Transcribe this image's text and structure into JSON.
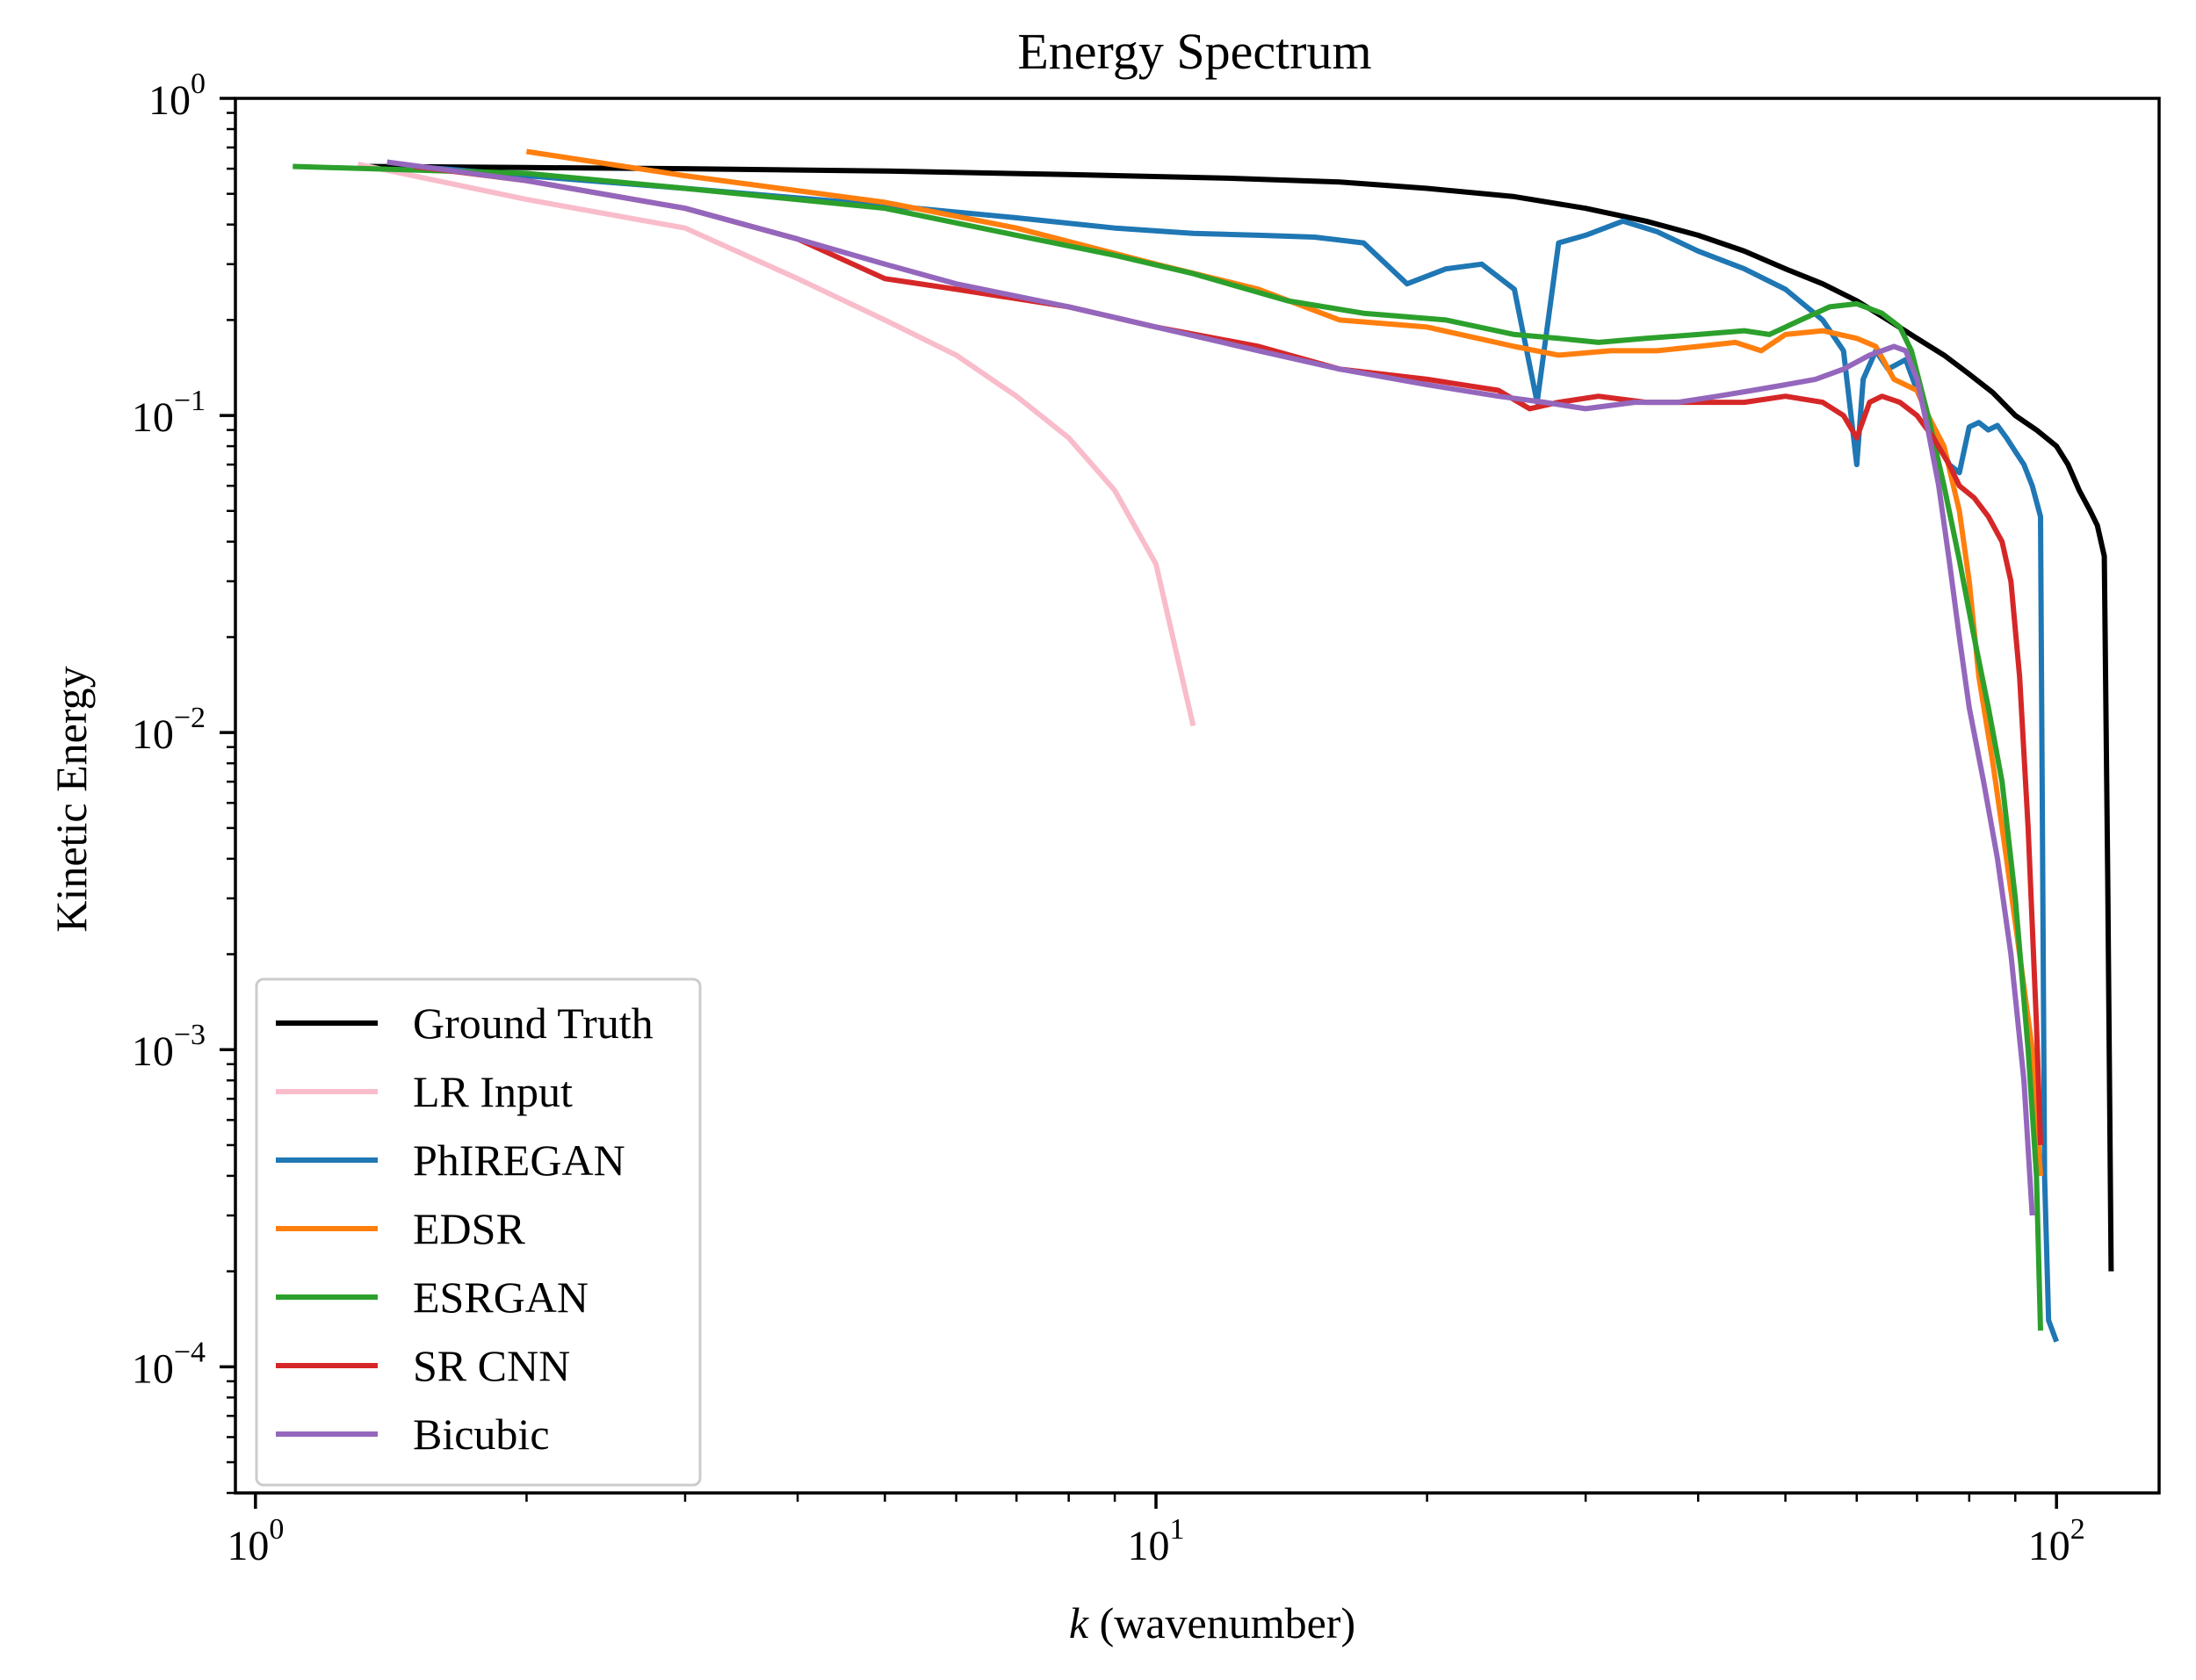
{
  "chart_data": {
    "type": "line",
    "title": "Energy Spectrum",
    "xlabel_italic": "k",
    "xlabel_rest": " (wavenumber)",
    "ylabel": "Kinetic Energy",
    "xscale": "log",
    "yscale": "log",
    "xlim": [
      0.95,
      130
    ],
    "ylim": [
      4e-05,
      1.0
    ],
    "x_ticks": [
      {
        "value": 1,
        "base": "10",
        "exp": "0"
      },
      {
        "value": 10,
        "base": "10",
        "exp": "1"
      },
      {
        "value": 100,
        "base": "10",
        "exp": "2"
      }
    ],
    "y_ticks": [
      {
        "value": 1,
        "base": "10",
        "exp": "0"
      },
      {
        "value": 0.1,
        "base": "10",
        "exp": "−1"
      },
      {
        "value": 0.01,
        "base": "10",
        "exp": "−2"
      },
      {
        "value": 0.001,
        "base": "10",
        "exp": "−3"
      },
      {
        "value": 0.0001,
        "base": "10",
        "exp": "−4"
      }
    ],
    "grid": false,
    "legend_position": "lower-left",
    "series": [
      {
        "name": "Ground Truth",
        "color": "#000000",
        "points": [
          [
            1.3,
            0.61
          ],
          [
            2,
            0.605
          ],
          [
            3,
            0.6
          ],
          [
            5,
            0.59
          ],
          [
            8,
            0.575
          ],
          [
            12,
            0.56
          ],
          [
            16,
            0.545
          ],
          [
            20,
            0.52
          ],
          [
            25,
            0.49
          ],
          [
            30,
            0.45
          ],
          [
            35,
            0.41
          ],
          [
            40,
            0.37
          ],
          [
            45,
            0.33
          ],
          [
            50,
            0.29
          ],
          [
            55,
            0.26
          ],
          [
            60,
            0.23
          ],
          [
            65,
            0.2
          ],
          [
            70,
            0.175
          ],
          [
            75,
            0.155
          ],
          [
            80,
            0.135
          ],
          [
            85,
            0.118
          ],
          [
            90,
            0.1
          ],
          [
            95,
            0.09
          ],
          [
            100,
            0.08
          ],
          [
            103,
            0.07
          ],
          [
            106,
            0.058
          ],
          [
            109,
            0.05
          ],
          [
            111,
            0.045
          ],
          [
            113,
            0.036
          ],
          [
            114,
            0.0035
          ],
          [
            115,
            0.0002
          ]
        ]
      },
      {
        "name": "LR Input",
        "color": "#f9bccb",
        "points": [
          [
            1.3,
            0.62
          ],
          [
            2,
            0.48
          ],
          [
            3,
            0.39
          ],
          [
            4,
            0.27
          ],
          [
            5,
            0.2
          ],
          [
            6,
            0.155
          ],
          [
            7,
            0.115
          ],
          [
            8,
            0.085
          ],
          [
            9,
            0.058
          ],
          [
            10,
            0.034
          ],
          [
            11,
            0.0105
          ]
        ]
      },
      {
        "name": "PhIREGAN",
        "color": "#1f77b4",
        "points": [
          [
            1.5,
            0.61
          ],
          [
            2,
            0.57
          ],
          [
            3,
            0.52
          ],
          [
            5,
            0.46
          ],
          [
            7,
            0.42
          ],
          [
            9,
            0.39
          ],
          [
            11,
            0.375
          ],
          [
            13,
            0.37
          ],
          [
            15,
            0.365
          ],
          [
            17,
            0.35
          ],
          [
            19,
            0.26
          ],
          [
            21,
            0.29
          ],
          [
            23,
            0.3
          ],
          [
            25,
            0.25
          ],
          [
            26.5,
            0.11
          ],
          [
            28,
            0.35
          ],
          [
            30,
            0.37
          ],
          [
            33,
            0.41
          ],
          [
            36,
            0.38
          ],
          [
            40,
            0.33
          ],
          [
            45,
            0.29
          ],
          [
            50,
            0.25
          ],
          [
            55,
            0.2
          ],
          [
            58,
            0.16
          ],
          [
            60,
            0.07
          ],
          [
            61,
            0.13
          ],
          [
            63,
            0.16
          ],
          [
            65,
            0.14
          ],
          [
            68,
            0.15
          ],
          [
            70,
            0.12
          ],
          [
            72,
            0.1
          ],
          [
            74,
            0.085
          ],
          [
            76,
            0.07
          ],
          [
            78,
            0.066
          ],
          [
            80,
            0.092
          ],
          [
            82,
            0.095
          ],
          [
            84,
            0.09
          ],
          [
            86,
            0.093
          ],
          [
            88,
            0.085
          ],
          [
            90,
            0.077
          ],
          [
            92,
            0.07
          ],
          [
            94,
            0.06
          ],
          [
            96,
            0.048
          ],
          [
            97,
            0.0004
          ],
          [
            98,
            0.00014
          ],
          [
            100,
            0.00012
          ]
        ]
      },
      {
        "name": "EDSR",
        "color": "#ff7f0e",
        "points": [
          [
            2,
            0.68
          ],
          [
            3,
            0.57
          ],
          [
            5,
            0.47
          ],
          [
            7,
            0.39
          ],
          [
            10,
            0.3
          ],
          [
            13,
            0.25
          ],
          [
            16,
            0.2
          ],
          [
            20,
            0.19
          ],
          [
            25,
            0.165
          ],
          [
            28,
            0.155
          ],
          [
            32,
            0.16
          ],
          [
            36,
            0.16
          ],
          [
            40,
            0.165
          ],
          [
            44,
            0.17
          ],
          [
            47,
            0.16
          ],
          [
            50,
            0.18
          ],
          [
            55,
            0.185
          ],
          [
            60,
            0.175
          ],
          [
            63,
            0.165
          ],
          [
            66,
            0.13
          ],
          [
            70,
            0.12
          ],
          [
            72,
            0.1
          ],
          [
            75,
            0.08
          ],
          [
            78,
            0.05
          ],
          [
            80,
            0.03
          ],
          [
            82,
            0.015
          ],
          [
            85,
            0.008
          ],
          [
            88,
            0.004
          ],
          [
            91,
            0.002
          ],
          [
            94,
            0.001
          ],
          [
            96,
            0.0004
          ]
        ]
      },
      {
        "name": "ESRGAN",
        "color": "#2ca02c",
        "points": [
          [
            1.1,
            0.61
          ],
          [
            2,
            0.58
          ],
          [
            3,
            0.52
          ],
          [
            5,
            0.45
          ],
          [
            7,
            0.37
          ],
          [
            9,
            0.32
          ],
          [
            11,
            0.28
          ],
          [
            14,
            0.23
          ],
          [
            17,
            0.21
          ],
          [
            21,
            0.2
          ],
          [
            25,
            0.18
          ],
          [
            28,
            0.175
          ],
          [
            31,
            0.17
          ],
          [
            35,
            0.175
          ],
          [
            40,
            0.18
          ],
          [
            45,
            0.185
          ],
          [
            48,
            0.18
          ],
          [
            52,
            0.2
          ],
          [
            56,
            0.22
          ],
          [
            60,
            0.225
          ],
          [
            64,
            0.21
          ],
          [
            67,
            0.19
          ],
          [
            69,
            0.16
          ],
          [
            72,
            0.1
          ],
          [
            75,
            0.06
          ],
          [
            78,
            0.035
          ],
          [
            81,
            0.02
          ],
          [
            84,
            0.012
          ],
          [
            87,
            0.007
          ],
          [
            90,
            0.003
          ],
          [
            93,
            0.001
          ],
          [
            95,
            0.0004
          ],
          [
            96,
            0.00013
          ]
        ]
      },
      {
        "name": "SR CNN",
        "color": "#d62728",
        "points": [
          [
            1.5,
            0.61
          ],
          [
            2,
            0.55
          ],
          [
            3,
            0.45
          ],
          [
            4,
            0.36
          ],
          [
            5,
            0.27
          ],
          [
            6,
            0.25
          ],
          [
            8,
            0.22
          ],
          [
            10,
            0.19
          ],
          [
            13,
            0.165
          ],
          [
            16,
            0.14
          ],
          [
            20,
            0.13
          ],
          [
            24,
            0.12
          ],
          [
            26,
            0.105
          ],
          [
            28,
            0.11
          ],
          [
            31,
            0.115
          ],
          [
            35,
            0.11
          ],
          [
            40,
            0.11
          ],
          [
            45,
            0.11
          ],
          [
            50,
            0.115
          ],
          [
            55,
            0.11
          ],
          [
            58,
            0.1
          ],
          [
            60,
            0.085
          ],
          [
            62,
            0.11
          ],
          [
            64,
            0.115
          ],
          [
            67,
            0.11
          ],
          [
            70,
            0.1
          ],
          [
            73,
            0.085
          ],
          [
            76,
            0.07
          ],
          [
            78,
            0.06
          ],
          [
            81,
            0.055
          ],
          [
            84,
            0.048
          ],
          [
            87,
            0.04
          ],
          [
            89,
            0.03
          ],
          [
            91,
            0.015
          ],
          [
            93,
            0.005
          ],
          [
            95,
            0.0012
          ],
          [
            96,
            0.0005
          ]
        ]
      },
      {
        "name": "Bicubic",
        "color": "#9467bd",
        "points": [
          [
            1.4,
            0.63
          ],
          [
            2,
            0.55
          ],
          [
            3,
            0.45
          ],
          [
            4,
            0.36
          ],
          [
            5,
            0.3
          ],
          [
            6,
            0.26
          ],
          [
            8,
            0.22
          ],
          [
            10,
            0.19
          ],
          [
            13,
            0.16
          ],
          [
            16,
            0.14
          ],
          [
            20,
            0.125
          ],
          [
            24,
            0.115
          ],
          [
            27,
            0.11
          ],
          [
            30,
            0.105
          ],
          [
            34,
            0.11
          ],
          [
            38,
            0.11
          ],
          [
            42,
            0.115
          ],
          [
            46,
            0.12
          ],
          [
            50,
            0.125
          ],
          [
            54,
            0.13
          ],
          [
            58,
            0.14
          ],
          [
            62,
            0.155
          ],
          [
            66,
            0.165
          ],
          [
            68,
            0.16
          ],
          [
            70,
            0.13
          ],
          [
            72,
            0.09
          ],
          [
            74,
            0.06
          ],
          [
            76,
            0.035
          ],
          [
            78,
            0.02
          ],
          [
            80,
            0.012
          ],
          [
            83,
            0.007
          ],
          [
            86,
            0.004
          ],
          [
            89,
            0.002
          ],
          [
            92,
            0.0008
          ],
          [
            94,
            0.0003
          ]
        ]
      }
    ]
  }
}
